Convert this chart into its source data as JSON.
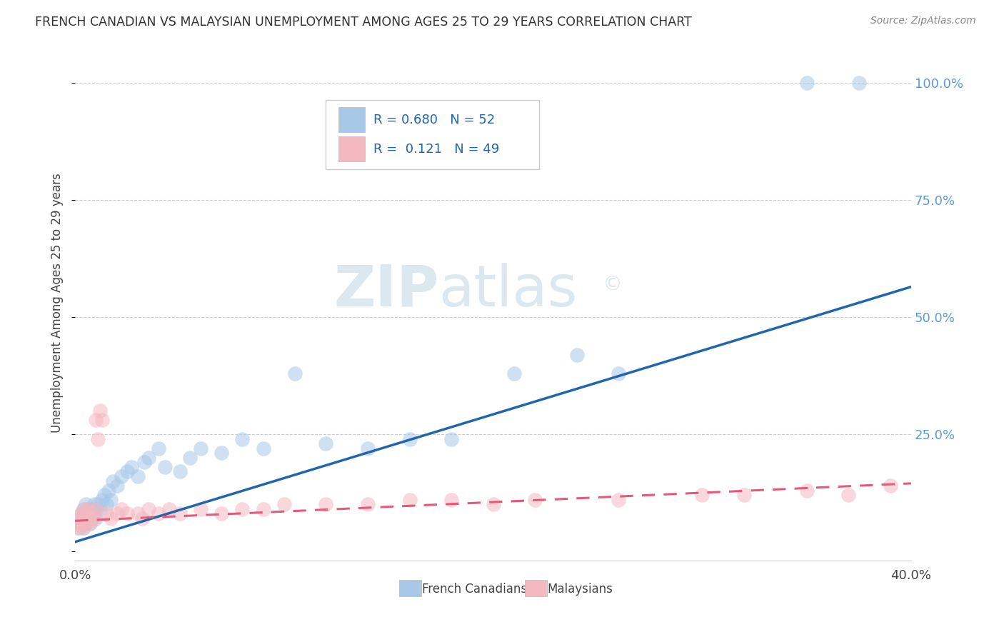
{
  "title": "FRENCH CANADIAN VS MALAYSIAN UNEMPLOYMENT AMONG AGES 25 TO 29 YEARS CORRELATION CHART",
  "source": "Source: ZipAtlas.com",
  "ylabel": "Unemployment Among Ages 25 to 29 years",
  "ytick_labels": [
    "",
    "25.0%",
    "50.0%",
    "75.0%",
    "100.0%"
  ],
  "ytick_values": [
    0,
    0.25,
    0.5,
    0.75,
    1.0
  ],
  "xlim": [
    0.0,
    0.4
  ],
  "ylim": [
    -0.02,
    1.08
  ],
  "fc_color": "#a8c8e8",
  "my_color": "#f4b8c0",
  "fc_line_color": "#2166ac",
  "my_line_color": "#e85878",
  "watermark_color": "#dce8f0",
  "background_color": "#ffffff",
  "grid_color": "#cccccc",
  "right_tick_color": "#5b9bd5",
  "fc_line_x0": 0.0,
  "fc_line_y0": 0.02,
  "fc_line_x1": 0.4,
  "fc_line_y1": 0.565,
  "my_line_x0": 0.0,
  "my_line_y0": 0.065,
  "my_line_x1": 0.4,
  "my_line_y1": 0.145,
  "fc_x": [
    0.002,
    0.003,
    0.003,
    0.004,
    0.004,
    0.004,
    0.005,
    0.005,
    0.005,
    0.006,
    0.006,
    0.007,
    0.007,
    0.008,
    0.008,
    0.009,
    0.009,
    0.01,
    0.01,
    0.011,
    0.012,
    0.013,
    0.014,
    0.015,
    0.016,
    0.017,
    0.018,
    0.02,
    0.022,
    0.025,
    0.027,
    0.03,
    0.033,
    0.035,
    0.04,
    0.043,
    0.05,
    0.055,
    0.06,
    0.07,
    0.08,
    0.09,
    0.105,
    0.12,
    0.14,
    0.16,
    0.18,
    0.21,
    0.24,
    0.26,
    0.35,
    0.375
  ],
  "fc_y": [
    0.05,
    0.06,
    0.08,
    0.05,
    0.07,
    0.09,
    0.06,
    0.07,
    0.1,
    0.07,
    0.09,
    0.06,
    0.08,
    0.07,
    0.09,
    0.08,
    0.1,
    0.07,
    0.09,
    0.1,
    0.09,
    0.11,
    0.12,
    0.1,
    0.13,
    0.11,
    0.15,
    0.14,
    0.16,
    0.17,
    0.18,
    0.16,
    0.19,
    0.2,
    0.22,
    0.18,
    0.17,
    0.2,
    0.22,
    0.21,
    0.24,
    0.22,
    0.38,
    0.23,
    0.22,
    0.24,
    0.24,
    0.38,
    0.42,
    0.38,
    1.0,
    1.0
  ],
  "my_x": [
    0.001,
    0.002,
    0.002,
    0.003,
    0.003,
    0.004,
    0.004,
    0.004,
    0.005,
    0.005,
    0.006,
    0.006,
    0.007,
    0.007,
    0.008,
    0.009,
    0.01,
    0.01,
    0.011,
    0.012,
    0.013,
    0.015,
    0.017,
    0.02,
    0.022,
    0.025,
    0.03,
    0.032,
    0.035,
    0.04,
    0.045,
    0.05,
    0.06,
    0.07,
    0.08,
    0.09,
    0.1,
    0.12,
    0.14,
    0.16,
    0.18,
    0.2,
    0.22,
    0.26,
    0.3,
    0.32,
    0.35,
    0.37,
    0.39
  ],
  "my_y": [
    0.05,
    0.06,
    0.07,
    0.06,
    0.08,
    0.05,
    0.07,
    0.09,
    0.06,
    0.08,
    0.07,
    0.09,
    0.06,
    0.07,
    0.08,
    0.07,
    0.09,
    0.28,
    0.24,
    0.3,
    0.28,
    0.08,
    0.07,
    0.08,
    0.09,
    0.08,
    0.08,
    0.07,
    0.09,
    0.08,
    0.09,
    0.08,
    0.09,
    0.08,
    0.09,
    0.09,
    0.1,
    0.1,
    0.1,
    0.11,
    0.11,
    0.1,
    0.11,
    0.11,
    0.12,
    0.12,
    0.13,
    0.12,
    0.14
  ]
}
